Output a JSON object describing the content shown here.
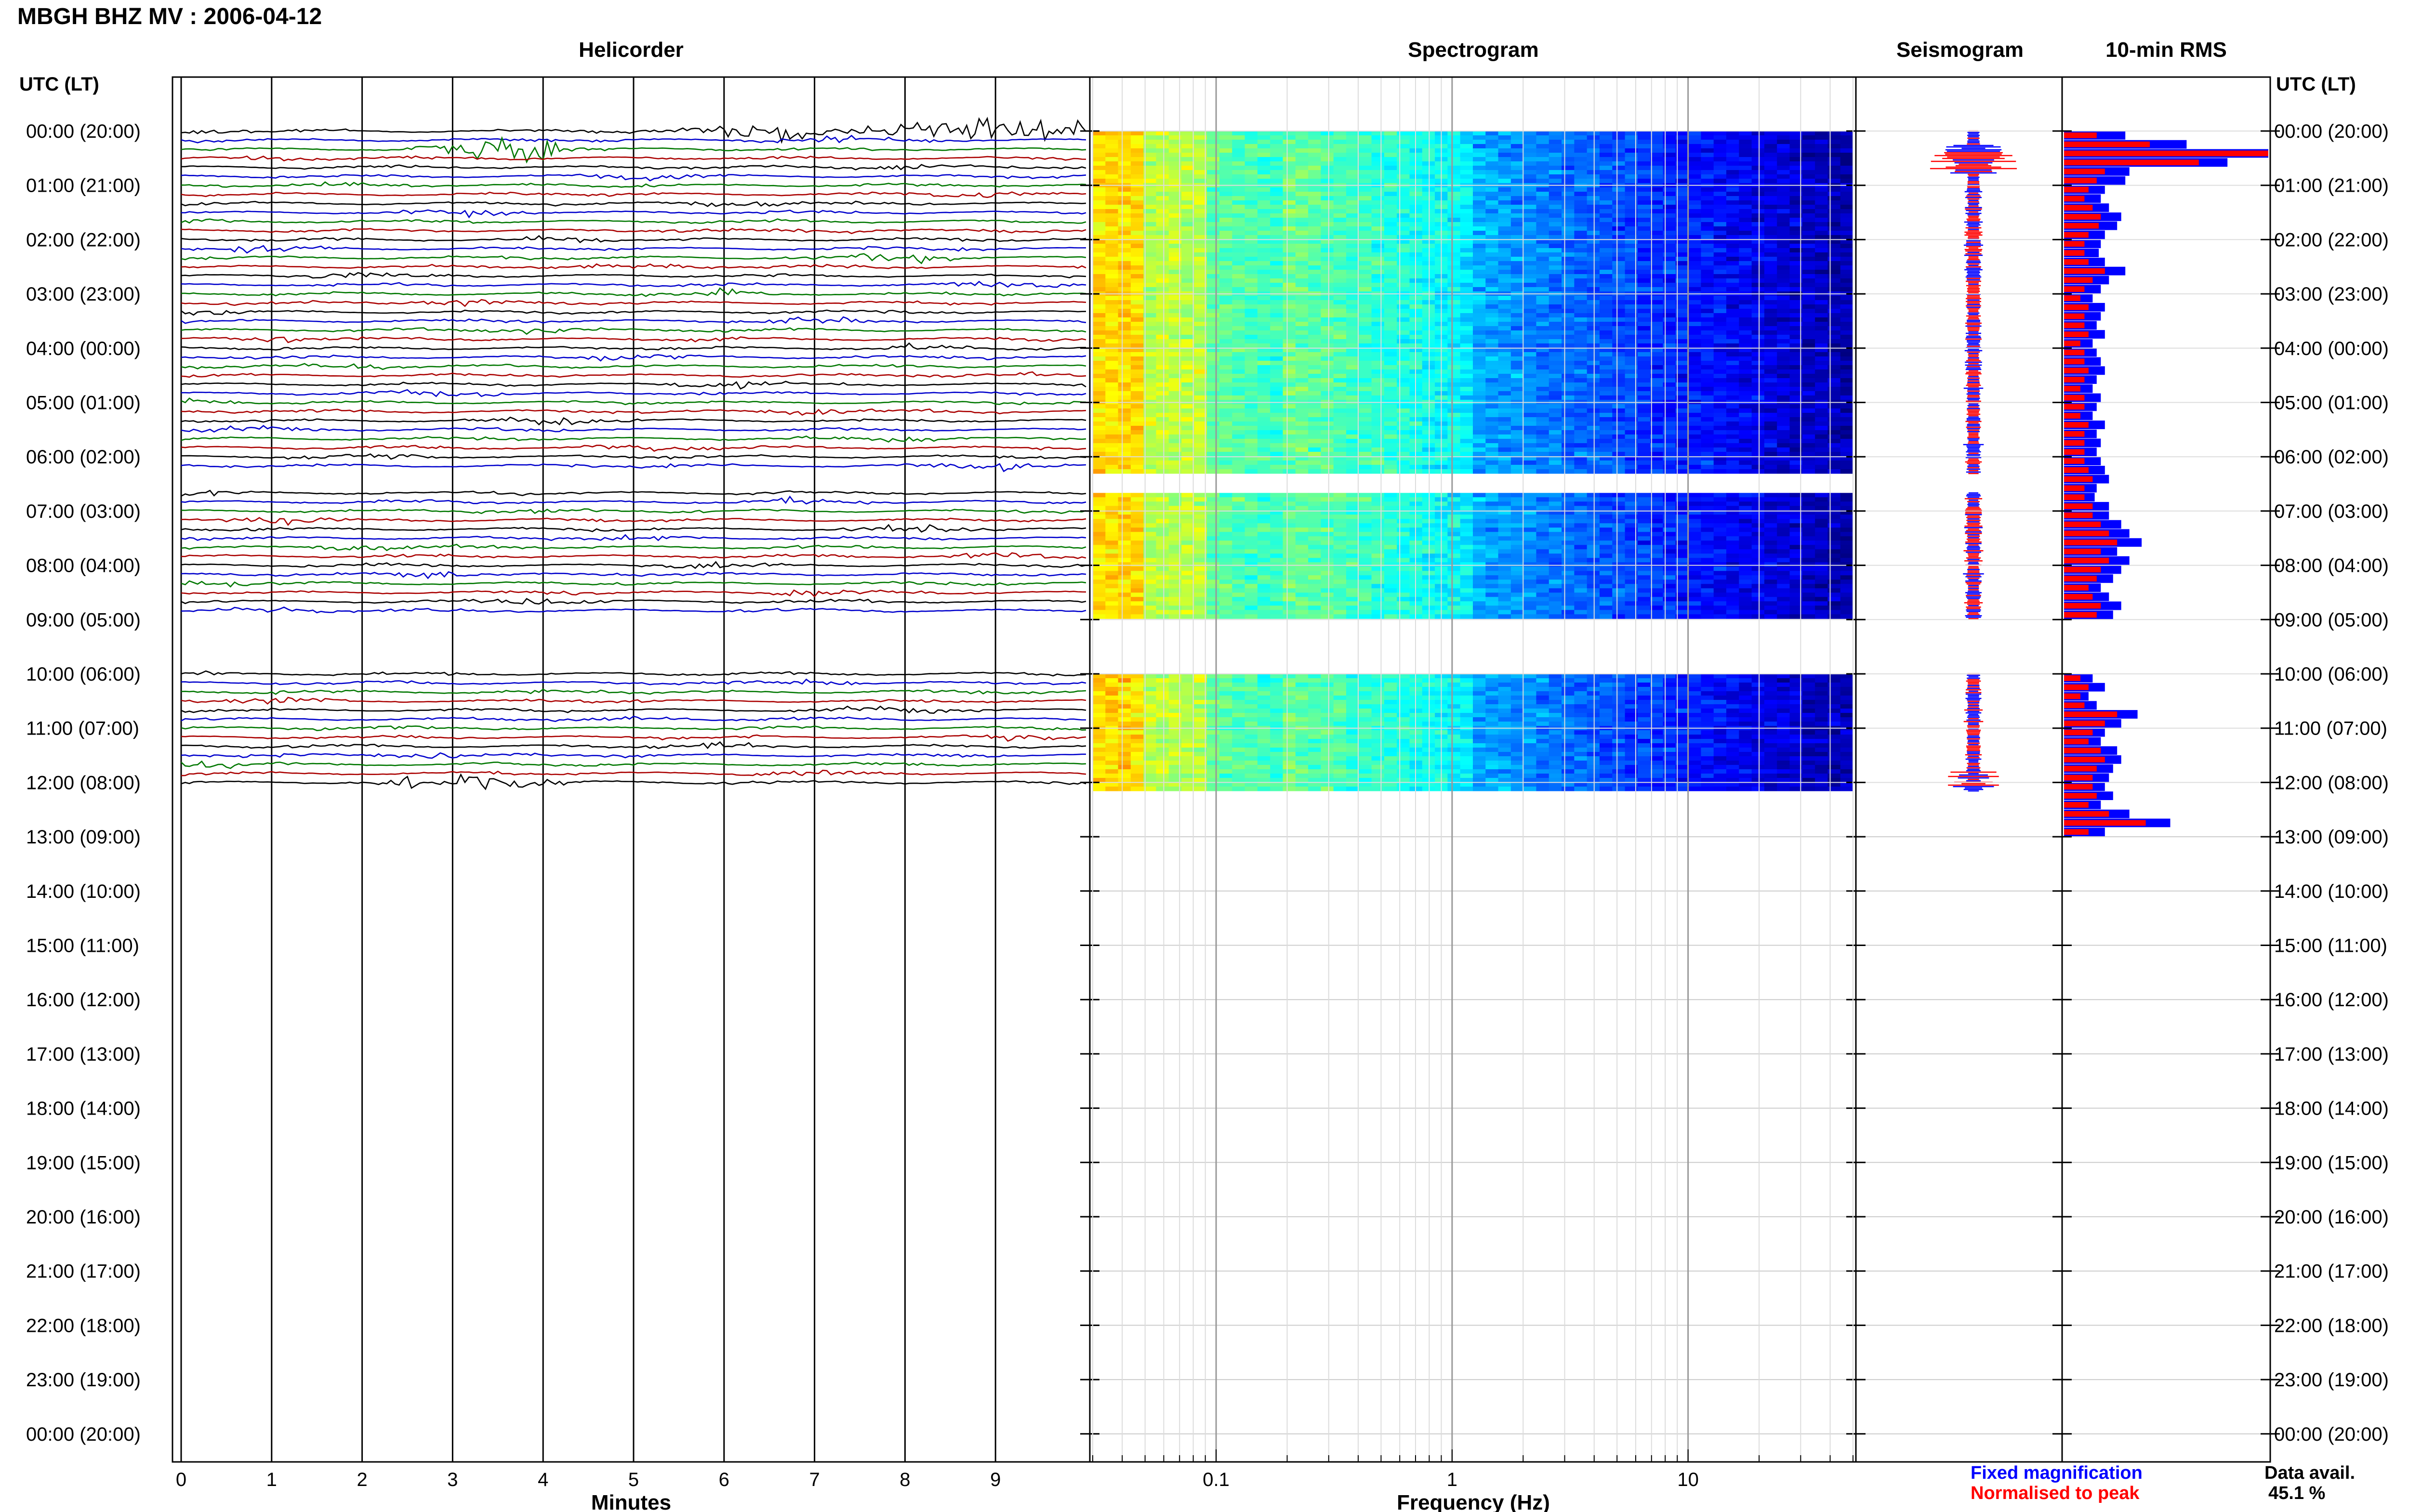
{
  "title": "MBGH BHZ MV : 2006-04-12",
  "panels": {
    "helicorder": "Helicorder",
    "spectrogram": "Spectrogram",
    "seismogram": "Seismogram",
    "rms": "10-min RMS"
  },
  "time_axis_label_left": "UTC (LT)",
  "time_axis_label_right": "UTC (LT)",
  "time_labels": [
    "00:00 (20:00)",
    "01:00 (21:00)",
    "02:00 (22:00)",
    "03:00 (23:00)",
    "04:00 (00:00)",
    "05:00 (01:00)",
    "06:00 (02:00)",
    "07:00 (03:00)",
    "08:00 (04:00)",
    "09:00 (05:00)",
    "10:00 (06:00)",
    "11:00 (07:00)",
    "12:00 (08:00)",
    "13:00 (09:00)",
    "14:00 (10:00)",
    "15:00 (11:00)",
    "16:00 (12:00)",
    "17:00 (13:00)",
    "18:00 (14:00)",
    "19:00 (15:00)",
    "20:00 (16:00)",
    "21:00 (17:00)",
    "22:00 (18:00)",
    "23:00 (19:00)",
    "00:00 (20:00)"
  ],
  "legend": {
    "fixed": "Fixed magnification",
    "normalised": "Normalised to peak",
    "fixed_color": "#0000ff",
    "normalised_color": "#ff0000"
  },
  "data_avail": {
    "label": "Data avail.",
    "value": "45.1 %"
  },
  "chart_data": [
    {
      "type": "line",
      "title": "Helicorder",
      "xlabel": "Minutes",
      "x_ticks": [
        "0",
        "1",
        "2",
        "3",
        "4",
        "5",
        "6",
        "7",
        "8",
        "9"
      ],
      "xlim": [
        0,
        10
      ],
      "trace_colors": [
        "#000000",
        "#0000cc",
        "#007700",
        "#aa0000"
      ],
      "data_gaps_utc": [
        [
          "06:20",
          "06:40"
        ],
        [
          "09:00",
          "10:00"
        ],
        [
          "12:10",
          "24:00"
        ]
      ],
      "notable_events": [
        {
          "hour": 0,
          "minute": 8.5,
          "trace_color": "black"
        },
        {
          "hour": 0,
          "minute": 6.5,
          "trace_color": "blue"
        },
        {
          "hour": 0,
          "minute": 9.5,
          "trace_color": "red"
        },
        {
          "hour": 0.3,
          "minute": 3.5,
          "trace_color": "black"
        },
        {
          "hour": 12,
          "minute": 3,
          "trace_color": "black"
        }
      ]
    },
    {
      "type": "heatmap",
      "title": "Spectrogram",
      "xlabel": "Frequency (Hz)",
      "x_scale": "log",
      "x_ticks": [
        "0.1",
        "1",
        "10"
      ],
      "xlim": [
        0.03,
        50
      ],
      "colormap": "jet",
      "data_segments_utc": [
        [
          "00:00",
          "06:20"
        ],
        [
          "06:40",
          "09:00"
        ],
        [
          "10:00",
          "12:10"
        ]
      ]
    },
    {
      "type": "line",
      "title": "Seismogram"
    },
    {
      "type": "bar",
      "title": "10-min RMS",
      "orientation": "horizontal",
      "series": [
        {
          "name": "Fixed magnification",
          "color": "#0000ff",
          "values": [
            0.3,
            0.6,
            1.0,
            0.8,
            0.32,
            0.3,
            0.2,
            0.18,
            0.22,
            0.28,
            0.26,
            0.2,
            0.18,
            0.17,
            0.2,
            0.3,
            0.22,
            0.18,
            0.14,
            0.2,
            0.18,
            0.16,
            0.2,
            0.14,
            0.16,
            0.18,
            0.2,
            0.16,
            0.14,
            0.18,
            0.16,
            0.14,
            0.2,
            0.16,
            0.18,
            0.16,
            0.18,
            0.2,
            0.22,
            0.16,
            0.15,
            0.22,
            0.22,
            0.28,
            0.32,
            0.38,
            0.26,
            0.32,
            0.28,
            0.24,
            0.18,
            0.22,
            0.28,
            0.24,
            0,
            0,
            0,
            0,
            0,
            0,
            0.14,
            0.2,
            0.12,
            0.16,
            0.36,
            0.28,
            0.2,
            0.18,
            0.26,
            0.28,
            0.24,
            0.22,
            0.2,
            0.24,
            0.18,
            0.32,
            0.52,
            0.2
          ]
        },
        {
          "name": "Normalised to peak",
          "color": "#ff0000",
          "values": [
            0.16,
            0.42,
            1.0,
            0.66,
            0.2,
            0.16,
            0.12,
            0.1,
            0.14,
            0.18,
            0.17,
            0.12,
            0.1,
            0.1,
            0.12,
            0.2,
            0.14,
            0.1,
            0.08,
            0.12,
            0.1,
            0.1,
            0.12,
            0.08,
            0.1,
            0.1,
            0.12,
            0.1,
            0.08,
            0.1,
            0.1,
            0.08,
            0.12,
            0.1,
            0.1,
            0.1,
            0.1,
            0.12,
            0.14,
            0.1,
            0.1,
            0.14,
            0.14,
            0.18,
            0.22,
            0.26,
            0.18,
            0.22,
            0.18,
            0.16,
            0.12,
            0.14,
            0.18,
            0.16,
            0,
            0,
            0,
            0,
            0,
            0,
            0.08,
            0.12,
            0.08,
            0.1,
            0.26,
            0.2,
            0.14,
            0.12,
            0.18,
            0.2,
            0.16,
            0.14,
            0.14,
            0.16,
            0.12,
            0.22,
            0.4,
            0.12
          ]
        }
      ]
    }
  ]
}
